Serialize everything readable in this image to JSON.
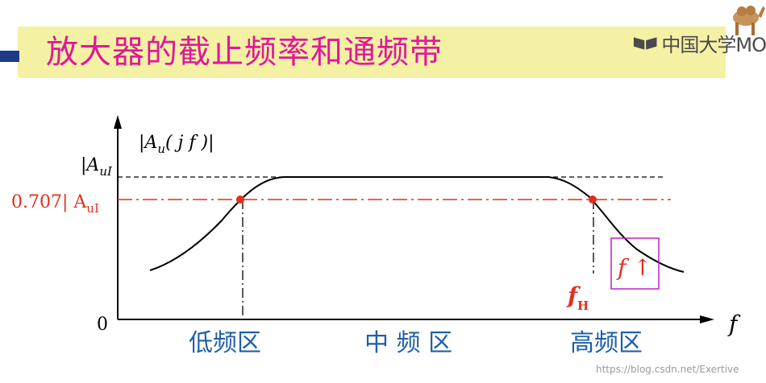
{
  "title": "放大器的截止频率和通频带",
  "logo": {
    "text": "中国大学MO",
    "icon": "book-icon"
  },
  "mascot": {
    "icon": "camel-icon"
  },
  "diagram": {
    "y_axis_label": "|A",
    "y_axis_label_sub": "u",
    "y_axis_label_tail": "( j f )|",
    "level_full_label": "|A",
    "level_full_sub": "uI",
    "level_707_label_prefix": "0.707| A",
    "level_707_sub": "uI",
    "origin_label": "0",
    "x_axis_label": "f",
    "fh_label": "f",
    "fh_sub": "H",
    "annotation": "f ↑",
    "regions": {
      "low": "低频区",
      "mid": "中 频 区",
      "high": "高频区"
    },
    "colors": {
      "red": "#e0301e",
      "blue": "#1f5fa8",
      "magenta": "#c020c0"
    }
  },
  "watermark": "https://blog.csdn.net/Exertive"
}
